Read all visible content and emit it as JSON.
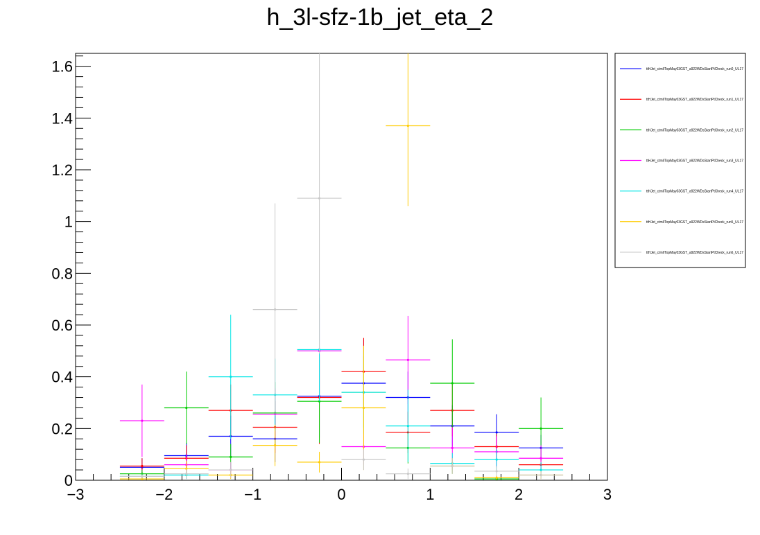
{
  "chart_data": {
    "type": "scatter",
    "title": "h_3l-sfz-1b_jet_eta_2",
    "xlabel": "",
    "ylabel": "",
    "xlim": [
      -3,
      3
    ],
    "ylim": [
      0,
      1.65
    ],
    "xticks": [
      "−3",
      "−2",
      "−1",
      "0",
      "1",
      "2",
      "3"
    ],
    "xtick_values": [
      -3,
      -2,
      -1,
      0,
      1,
      2,
      3
    ],
    "yticks": [
      "0",
      "0.2",
      "0.4",
      "0.6",
      "0.8",
      "1",
      "1.2",
      "1.4",
      "1.6"
    ],
    "ytick_values": [
      0,
      0.2,
      0.4,
      0.6,
      0.8,
      1.0,
      1.2,
      1.4,
      1.6
    ],
    "grid": false,
    "legend_position": "right",
    "bin_edges": [
      -2.5,
      -2.0,
      -1.5,
      -1.0,
      -0.5,
      0.0,
      0.5,
      1.0,
      1.5,
      2.0,
      2.5
    ],
    "series": [
      {
        "name": "ttHJet_ctmlITopMay03GST_a922WDsStartPtCheck_run0_UL17",
        "color": "#0000ff",
        "values": [
          0.05,
          0.095,
          0.17,
          0.16,
          0.325,
          0.375,
          0.32,
          0.21,
          0.185,
          0.125
        ],
        "errors": [
          0.035,
          0.05,
          0.08,
          0.09,
          0.16,
          0.17,
          0.1,
          0.08,
          0.07,
          0.05
        ]
      },
      {
        "name": "ttHJet_ctmlITopMay03GST_a922WDsStartPtCheck_run1_UL17",
        "color": "#ff0000",
        "values": [
          0.055,
          0.085,
          0.27,
          0.205,
          0.32,
          0.42,
          0.185,
          0.27,
          0.13,
          0.06
        ],
        "errors": [
          0.03,
          0.05,
          0.1,
          0.1,
          0.18,
          0.13,
          0.08,
          0.1,
          0.05,
          0.03
        ]
      },
      {
        "name": "ttHJet_ctmlITopMay03GST_a922WDsStartPtCheck_run2_UL17",
        "color": "#00cc00",
        "values": [
          0.025,
          0.28,
          0.09,
          0.26,
          0.305,
          0.34,
          0.125,
          0.375,
          0.005,
          0.2
        ],
        "errors": [
          0.015,
          0.14,
          0.05,
          0.12,
          0.16,
          0.14,
          0.06,
          0.17,
          0.005,
          0.12
        ]
      },
      {
        "name": "ttHJet_ctmlITopMay03GST_a922WDsStartPtCheck_run3_UL17",
        "color": "#ff00ff",
        "values": [
          0.23,
          0.06,
          0.04,
          0.255,
          0.5,
          0.13,
          0.465,
          0.125,
          0.11,
          0.085
        ],
        "errors": [
          0.14,
          0.04,
          0.03,
          0.1,
          0.18,
          0.07,
          0.17,
          0.08,
          0.06,
          0.05
        ]
      },
      {
        "name": "ttHJet_ctmlITopMay03GST_a922WDsStartPtCheck_run4_UL17",
        "color": "#00e5e5",
        "values": [
          0.015,
          0.02,
          0.4,
          0.33,
          0.505,
          0.34,
          0.21,
          0.065,
          0.08,
          0.04
        ],
        "errors": [
          0.01,
          0.015,
          0.24,
          0.14,
          0.2,
          0.16,
          0.14,
          0.04,
          0.04,
          0.03
        ]
      },
      {
        "name": "ttHJet_ctmlITopMay03GST_a922WDsStartPtCheck_run5_UL17",
        "color": "#ffcc00",
        "values": [
          0.005,
          0.045,
          0.02,
          0.135,
          0.07,
          0.28,
          1.37,
          0.055,
          0.01,
          0.02
        ],
        "errors": [
          0.005,
          0.03,
          0.015,
          0.08,
          0.04,
          0.24,
          0.31,
          0.03,
          0.008,
          0.015
        ]
      },
      {
        "name": "ttHJet_ctmlITopMay03GST_a922WDsStartPtCheck_run6_UL17",
        "color": "#c8c8c8",
        "values": [
          0.015,
          0.025,
          0.04,
          0.66,
          1.09,
          0.08,
          0.025,
          0.055,
          0.035,
          0.02
        ],
        "errors": [
          0.01,
          0.02,
          0.03,
          0.41,
          0.6,
          0.04,
          0.02,
          0.03,
          0.02,
          0.015
        ]
      }
    ]
  }
}
